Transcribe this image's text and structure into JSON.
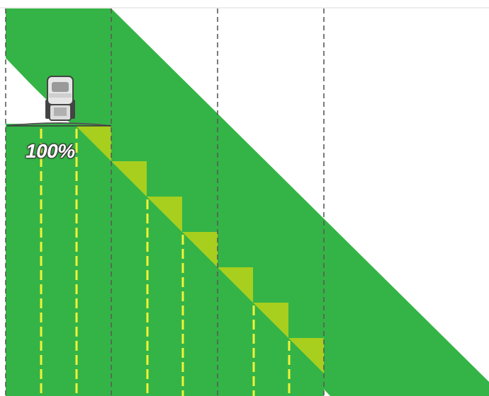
{
  "coverage": {
    "value": 100,
    "label": "100%"
  },
  "colors": {
    "field_green": "#34b446",
    "overlap_yellow_green": "#a8cf1e",
    "nozzle_line_yellow": "#f2f23a",
    "section_boundary_gray": "#5a5a5a",
    "background": "#ffffff"
  },
  "icons": {
    "vehicle": "tractor-sprayer-icon"
  }
}
